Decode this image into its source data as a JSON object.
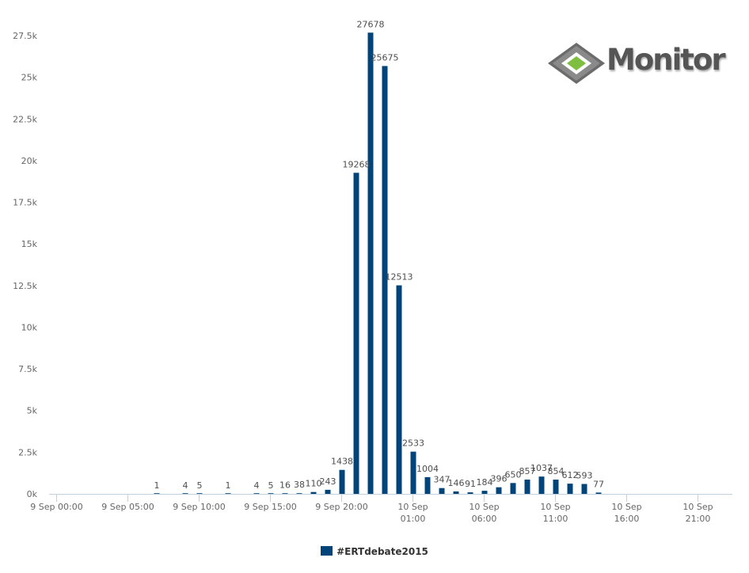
{
  "logo": {
    "text": "Monitor",
    "icon": "diamond-logo-icon"
  },
  "legend": {
    "label": "#ERTdebate2015",
    "color": "#004479"
  },
  "chart_data": {
    "type": "bar",
    "title": "",
    "xlabel": "",
    "ylabel": "",
    "ylim": [
      0,
      27500
    ],
    "yticks": [
      {
        "value": 0,
        "label": "0k"
      },
      {
        "value": 2500,
        "label": "2.5k"
      },
      {
        "value": 5000,
        "label": "5k"
      },
      {
        "value": 7500,
        "label": "7.5k"
      },
      {
        "value": 10000,
        "label": "10k"
      },
      {
        "value": 12500,
        "label": "12.5k"
      },
      {
        "value": 15000,
        "label": "15k"
      },
      {
        "value": 17500,
        "label": "17.5k"
      },
      {
        "value": 20000,
        "label": "20k"
      },
      {
        "value": 22500,
        "label": "22.5k"
      },
      {
        "value": 25000,
        "label": "25k"
      },
      {
        "value": 27500,
        "label": "27.5k"
      }
    ],
    "xlim": [
      0,
      48
    ],
    "x_unit": "hours since 9 Sep 00:00",
    "xticks": [
      {
        "hour": 0,
        "lines": [
          "9 Sep 00:00"
        ]
      },
      {
        "hour": 5,
        "lines": [
          "9 Sep 05:00"
        ]
      },
      {
        "hour": 10,
        "lines": [
          "9 Sep 10:00"
        ]
      },
      {
        "hour": 15,
        "lines": [
          "9 Sep 15:00"
        ]
      },
      {
        "hour": 20,
        "lines": [
          "9 Sep 20:00"
        ]
      },
      {
        "hour": 25,
        "lines": [
          "10 Sep",
          "01:00"
        ]
      },
      {
        "hour": 30,
        "lines": [
          "10 Sep",
          "06:00"
        ]
      },
      {
        "hour": 35,
        "lines": [
          "10 Sep",
          "11:00"
        ]
      },
      {
        "hour": 40,
        "lines": [
          "10 Sep",
          "16:00"
        ]
      },
      {
        "hour": 45,
        "lines": [
          "10 Sep",
          "21:00"
        ]
      }
    ],
    "series": [
      {
        "name": "#ERTdebate2015",
        "color": "#004479",
        "points": [
          {
            "hour": 7,
            "value": 1
          },
          {
            "hour": 9,
            "value": 4
          },
          {
            "hour": 10,
            "value": 5
          },
          {
            "hour": 12,
            "value": 1
          },
          {
            "hour": 14,
            "value": 4
          },
          {
            "hour": 15,
            "value": 5
          },
          {
            "hour": 16,
            "value": 16
          },
          {
            "hour": 17,
            "value": 38
          },
          {
            "hour": 18,
            "value": 110
          },
          {
            "hour": 19,
            "value": 243
          },
          {
            "hour": 20,
            "value": 1438
          },
          {
            "hour": 21,
            "value": 19268
          },
          {
            "hour": 22,
            "value": 27678
          },
          {
            "hour": 23,
            "value": 25675
          },
          {
            "hour": 24,
            "value": 12513
          },
          {
            "hour": 25,
            "value": 2533
          },
          {
            "hour": 26,
            "value": 1004
          },
          {
            "hour": 27,
            "value": 347
          },
          {
            "hour": 28,
            "value": 146
          },
          {
            "hour": 29,
            "value": 91
          },
          {
            "hour": 30,
            "value": 184
          },
          {
            "hour": 31,
            "value": 396
          },
          {
            "hour": 32,
            "value": 650
          },
          {
            "hour": 33,
            "value": 857
          },
          {
            "hour": 34,
            "value": 1037
          },
          {
            "hour": 35,
            "value": 854
          },
          {
            "hour": 36,
            "value": 612
          },
          {
            "hour": 37,
            "value": 593
          },
          {
            "hour": 38,
            "value": 77
          }
        ]
      }
    ],
    "grid": false,
    "legend_position": "bottom-center"
  }
}
